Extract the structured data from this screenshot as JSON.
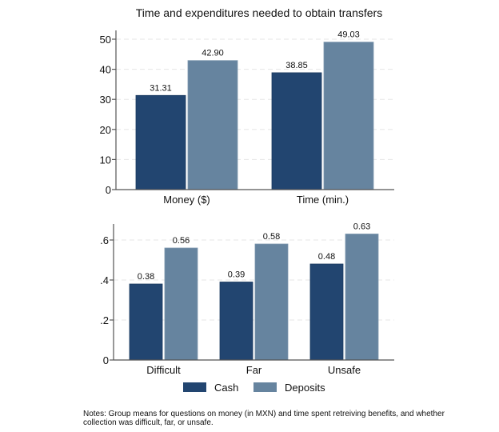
{
  "figure_title": "Time and expenditures needed to obtain transfers",
  "colors": {
    "cash": "#224570",
    "deposits": "#66849f",
    "axis": "#555555",
    "grid": "#e6e6e6"
  },
  "legend": {
    "items": [
      {
        "label": "Cash",
        "key": "cash"
      },
      {
        "label": "Deposits",
        "key": "deposits"
      }
    ],
    "placement": "bottom"
  },
  "notes": "Notes: Group means for questions on money (in MXN) and time spent retreiving benefits, and whether collection was difficult, far, or unsafe.",
  "chart_data": [
    {
      "type": "bar",
      "title": "Time and expenditures needed to obtain transfers",
      "categories": [
        "Money ($)",
        "Time (min.)"
      ],
      "series": [
        {
          "name": "Cash",
          "values": [
            31.31,
            38.85
          ],
          "labels": [
            "31.31",
            "38.85"
          ]
        },
        {
          "name": "Deposits",
          "values": [
            42.9,
            49.03
          ],
          "labels": [
            "42.90",
            "49.03"
          ]
        }
      ],
      "yticks": [
        0,
        10,
        20,
        30,
        40,
        50
      ],
      "ytick_labels": [
        "0",
        "10",
        "20",
        "30",
        "40",
        "50"
      ],
      "ylim": [
        0,
        51
      ],
      "grid": true,
      "xlabel": "",
      "ylabel": ""
    },
    {
      "type": "bar",
      "categories": [
        "Difficult",
        "Far",
        "Unsafe"
      ],
      "series": [
        {
          "name": "Cash",
          "values": [
            0.38,
            0.39,
            0.48
          ],
          "labels": [
            "0.38",
            "0.39",
            "0.48"
          ]
        },
        {
          "name": "Deposits",
          "values": [
            0.56,
            0.58,
            0.63
          ],
          "labels": [
            "0.56",
            "0.58",
            "0.63"
          ]
        }
      ],
      "yticks": [
        0,
        0.2,
        0.4,
        0.6
      ],
      "ytick_labels": [
        "0",
        ".2",
        ".4",
        ".6"
      ],
      "ylim": [
        0,
        0.68
      ],
      "grid": true,
      "xlabel": "",
      "ylabel": ""
    }
  ]
}
